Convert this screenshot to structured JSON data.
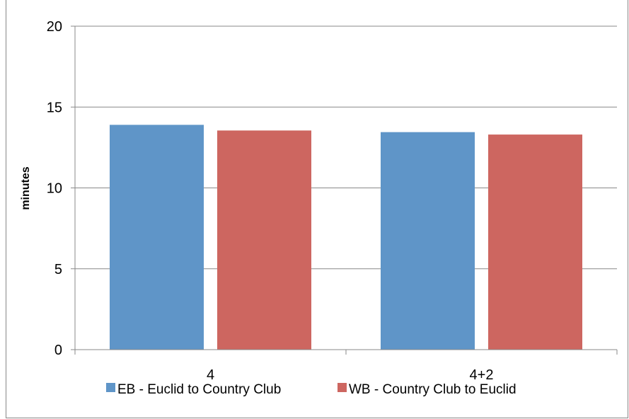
{
  "chart_data": {
    "type": "bar",
    "categories": [
      "4",
      "4+2"
    ],
    "series": [
      {
        "name": "EB - Euclid to Country Club",
        "values": [
          13.9,
          13.45
        ],
        "color": "#5f95c8"
      },
      {
        "name": "WB - Country Club to Euclid",
        "values": [
          13.55,
          13.3
        ],
        "color": "#cd6660"
      }
    ],
    "title": "",
    "xlabel": "",
    "ylabel": "minutes",
    "ylim": [
      0,
      20
    ],
    "yticks": [
      "0",
      "5",
      "10",
      "15",
      "20"
    ],
    "grid": true,
    "legend_position": "bottom"
  }
}
